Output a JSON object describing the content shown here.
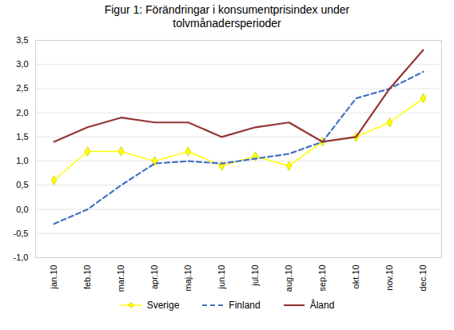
{
  "chart_data": {
    "type": "line",
    "title": "Figur 1: Förändringar i konsumentprisindex  under\ntolvmånadersperioder",
    "categories": [
      "jan.10",
      "feb.10",
      "mar.10",
      "apr.10",
      "maj.10",
      "jun.10",
      "jul.10",
      "aug.10",
      "sep.10",
      "okt.10",
      "nov.10",
      "dec.10"
    ],
    "series": [
      {
        "name": "Sverige",
        "color": "#ffff00",
        "marker": "diamond",
        "line_style": "solid",
        "values": [
          0.6,
          1.2,
          1.2,
          1.0,
          1.2,
          0.9,
          1.1,
          0.9,
          1.4,
          1.5,
          1.8,
          2.3
        ]
      },
      {
        "name": "Finland",
        "color": "#4472c4",
        "line_style": "dashed",
        "values": [
          -0.3,
          0.0,
          0.5,
          0.95,
          1.0,
          0.95,
          1.05,
          1.15,
          1.4,
          2.3,
          2.5,
          2.85
        ]
      },
      {
        "name": "Åland",
        "color": "#943634",
        "line_style": "solid",
        "values": [
          1.4,
          1.7,
          1.9,
          1.8,
          1.8,
          1.5,
          1.7,
          1.8,
          1.4,
          1.5,
          2.5,
          3.3
        ]
      }
    ],
    "ylim": [
      -1.0,
      3.5
    ],
    "yticks": [
      {
        "value": -1.0,
        "label": "-1,0"
      },
      {
        "value": -0.5,
        "label": "-0,5"
      },
      {
        "value": 0.0,
        "label": "0,0"
      },
      {
        "value": 0.5,
        "label": "0,5"
      },
      {
        "value": 1.0,
        "label": "1,0"
      },
      {
        "value": 1.5,
        "label": "1,5"
      },
      {
        "value": 2.0,
        "label": "2,0"
      },
      {
        "value": 2.5,
        "label": "2,5"
      },
      {
        "value": 3.0,
        "label": "3,0"
      },
      {
        "value": 3.5,
        "label": "3,5"
      }
    ],
    "grid": true,
    "legend": "bottom"
  }
}
